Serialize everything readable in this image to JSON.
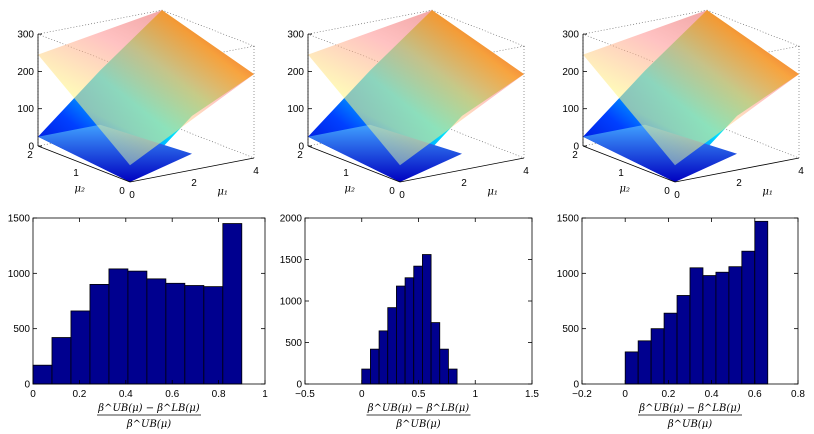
{
  "colors": {
    "bar_fill": "#00008f",
    "bar_edge": "#000000",
    "axis": "#000000",
    "background": "#ffffff"
  },
  "chart_data": [
    {
      "type": "surface3d",
      "panel": "top-left",
      "xlabel": "μ₁",
      "ylabel": "μ₂",
      "x_ticks": [
        "0",
        "2",
        "4"
      ],
      "y_ticks": [
        "0",
        "1",
        "2"
      ],
      "z_ticks": [
        "0",
        "100",
        "200",
        "300"
      ],
      "xlim": [
        0,
        4
      ],
      "ylim": [
        0,
        2
      ],
      "zlim": [
        0,
        300
      ],
      "upper_surface_corners": [
        {
          "mu1": 0,
          "mu2": 0,
          "z": 45
        },
        {
          "mu1": 4,
          "mu2": 0,
          "z": 225
        },
        {
          "mu1": 4,
          "mu2": 2,
          "z": 300
        },
        {
          "mu1": 0,
          "mu2": 2,
          "z": 245
        }
      ],
      "lower_surface_points": [
        {
          "mu1": 0,
          "mu2": 0,
          "z": 0
        },
        {
          "mu1": 4,
          "mu2": 0,
          "z": 225
        },
        {
          "mu1": 2,
          "mu2": 0,
          "z": 145
        },
        {
          "mu1": 0,
          "mu2": 2,
          "z": 25
        }
      ],
      "colormap": "jet"
    },
    {
      "type": "surface3d",
      "panel": "top-middle",
      "xlabel": "μ₁",
      "ylabel": "μ₂",
      "x_ticks": [
        "0",
        "2",
        "4"
      ],
      "y_ticks": [
        "0",
        "1",
        "2"
      ],
      "z_ticks": [
        "0",
        "100",
        "200",
        "300"
      ],
      "xlim": [
        0,
        4
      ],
      "ylim": [
        0,
        2
      ],
      "zlim": [
        0,
        300
      ],
      "upper_surface_corners": [
        {
          "mu1": 0,
          "mu2": 0,
          "z": 45
        },
        {
          "mu1": 4,
          "mu2": 0,
          "z": 225
        },
        {
          "mu1": 4,
          "mu2": 2,
          "z": 300
        },
        {
          "mu1": 0,
          "mu2": 2,
          "z": 245
        }
      ],
      "lower_surface_points": [
        {
          "mu1": 0,
          "mu2": 0,
          "z": 0
        },
        {
          "mu1": 4,
          "mu2": 0,
          "z": 225
        },
        {
          "mu1": 2,
          "mu2": 0,
          "z": 145
        },
        {
          "mu1": 0,
          "mu2": 2,
          "z": 25
        }
      ],
      "colormap": "jet"
    },
    {
      "type": "surface3d",
      "panel": "top-right",
      "xlabel": "μ₁",
      "ylabel": "μ₂",
      "x_ticks": [
        "0",
        "2",
        "4"
      ],
      "y_ticks": [
        "0",
        "1",
        "2"
      ],
      "z_ticks": [
        "0",
        "100",
        "200",
        "300"
      ],
      "xlim": [
        0,
        4
      ],
      "ylim": [
        0,
        2
      ],
      "zlim": [
        0,
        300
      ],
      "upper_surface_corners": [
        {
          "mu1": 0,
          "mu2": 0,
          "z": 45
        },
        {
          "mu1": 4,
          "mu2": 0,
          "z": 225
        },
        {
          "mu1": 4,
          "mu2": 2,
          "z": 300
        },
        {
          "mu1": 0,
          "mu2": 2,
          "z": 245
        }
      ],
      "lower_surface_points": [
        {
          "mu1": 0,
          "mu2": 0,
          "z": 0
        },
        {
          "mu1": 4,
          "mu2": 0,
          "z": 225
        },
        {
          "mu1": 2,
          "mu2": 0,
          "z": 145
        },
        {
          "mu1": 0,
          "mu2": 2,
          "z": 25
        }
      ],
      "colormap": "jet"
    },
    {
      "type": "bar",
      "panel": "bottom-left",
      "xlabel_num": "β^UB(μ) − β^LB(μ)",
      "xlabel_den": "β^UB(μ)",
      "xlim": [
        0,
        1
      ],
      "ylim": [
        0,
        1500
      ],
      "x_ticks": [
        0,
        0.2,
        0.4,
        0.6,
        0.8,
        1
      ],
      "x_tick_labels": [
        "0",
        "0.2",
        "0.4",
        "0.6",
        "0.8",
        "1"
      ],
      "y_ticks": [
        0,
        500,
        1000,
        1500
      ],
      "y_tick_labels": [
        "0",
        "500",
        "1000",
        "1500"
      ],
      "bins": [
        {
          "x0": 0.0,
          "x1": 0.0818,
          "count": 170
        },
        {
          "x0": 0.0818,
          "x1": 0.1636,
          "count": 420
        },
        {
          "x0": 0.1636,
          "x1": 0.2455,
          "count": 660
        },
        {
          "x0": 0.2455,
          "x1": 0.3273,
          "count": 900
        },
        {
          "x0": 0.3273,
          "x1": 0.4091,
          "count": 1040
        },
        {
          "x0": 0.4091,
          "x1": 0.4909,
          "count": 1020
        },
        {
          "x0": 0.4909,
          "x1": 0.5727,
          "count": 950
        },
        {
          "x0": 0.5727,
          "x1": 0.6545,
          "count": 910
        },
        {
          "x0": 0.6545,
          "x1": 0.7364,
          "count": 890
        },
        {
          "x0": 0.7364,
          "x1": 0.8182,
          "count": 880
        },
        {
          "x0": 0.8182,
          "x1": 0.9,
          "count": 1450
        }
      ]
    },
    {
      "type": "bar",
      "panel": "bottom-middle",
      "xlabel_num": "β^UB(μ) − β^LB(μ)",
      "xlabel_den": "β^UB(μ)",
      "xlim": [
        -0.5,
        1.5
      ],
      "ylim": [
        0,
        2000
      ],
      "x_ticks": [
        -0.5,
        0,
        0.5,
        1,
        1.5
      ],
      "x_tick_labels": [
        "−0.5",
        "0",
        "0.5",
        "1",
        "1.5"
      ],
      "y_ticks": [
        0,
        500,
        1000,
        1500,
        2000
      ],
      "y_tick_labels": [
        "0",
        "500",
        "1000",
        "1500",
        "2000"
      ],
      "bins": [
        {
          "x0": 0.0,
          "x1": 0.0764,
          "count": 180
        },
        {
          "x0": 0.0764,
          "x1": 0.1527,
          "count": 420
        },
        {
          "x0": 0.1527,
          "x1": 0.2291,
          "count": 640
        },
        {
          "x0": 0.2291,
          "x1": 0.3055,
          "count": 920
        },
        {
          "x0": 0.3055,
          "x1": 0.3818,
          "count": 1180
        },
        {
          "x0": 0.3818,
          "x1": 0.4582,
          "count": 1280
        },
        {
          "x0": 0.4582,
          "x1": 0.5345,
          "count": 1420
        },
        {
          "x0": 0.5345,
          "x1": 0.6109,
          "count": 1560
        },
        {
          "x0": 0.6109,
          "x1": 0.6873,
          "count": 740
        },
        {
          "x0": 0.6873,
          "x1": 0.7636,
          "count": 420
        },
        {
          "x0": 0.7636,
          "x1": 0.84,
          "count": 180
        }
      ]
    },
    {
      "type": "bar",
      "panel": "bottom-right",
      "xlabel_num": "β^UB(μ) − β^LB(μ)",
      "xlabel_den": "β^UB(μ)",
      "xlim": [
        -0.2,
        0.8
      ],
      "ylim": [
        0,
        1500
      ],
      "x_ticks": [
        -0.2,
        0,
        0.2,
        0.4,
        0.6,
        0.8
      ],
      "x_tick_labels": [
        "−0.2",
        "0",
        "0.2",
        "0.4",
        "0.6",
        "0.8"
      ],
      "y_ticks": [
        0,
        500,
        1000,
        1500
      ],
      "y_tick_labels": [
        "0",
        "500",
        "1000",
        "1500"
      ],
      "bins": [
        {
          "x0": 0.0,
          "x1": 0.06,
          "count": 290
        },
        {
          "x0": 0.06,
          "x1": 0.12,
          "count": 390
        },
        {
          "x0": 0.12,
          "x1": 0.18,
          "count": 500
        },
        {
          "x0": 0.18,
          "x1": 0.24,
          "count": 640
        },
        {
          "x0": 0.24,
          "x1": 0.3,
          "count": 800
        },
        {
          "x0": 0.3,
          "x1": 0.36,
          "count": 1050
        },
        {
          "x0": 0.36,
          "x1": 0.42,
          "count": 980
        },
        {
          "x0": 0.42,
          "x1": 0.48,
          "count": 1010
        },
        {
          "x0": 0.48,
          "x1": 0.54,
          "count": 1060
        },
        {
          "x0": 0.54,
          "x1": 0.6,
          "count": 1200
        },
        {
          "x0": 0.6,
          "x1": 0.66,
          "count": 1470
        }
      ]
    }
  ]
}
